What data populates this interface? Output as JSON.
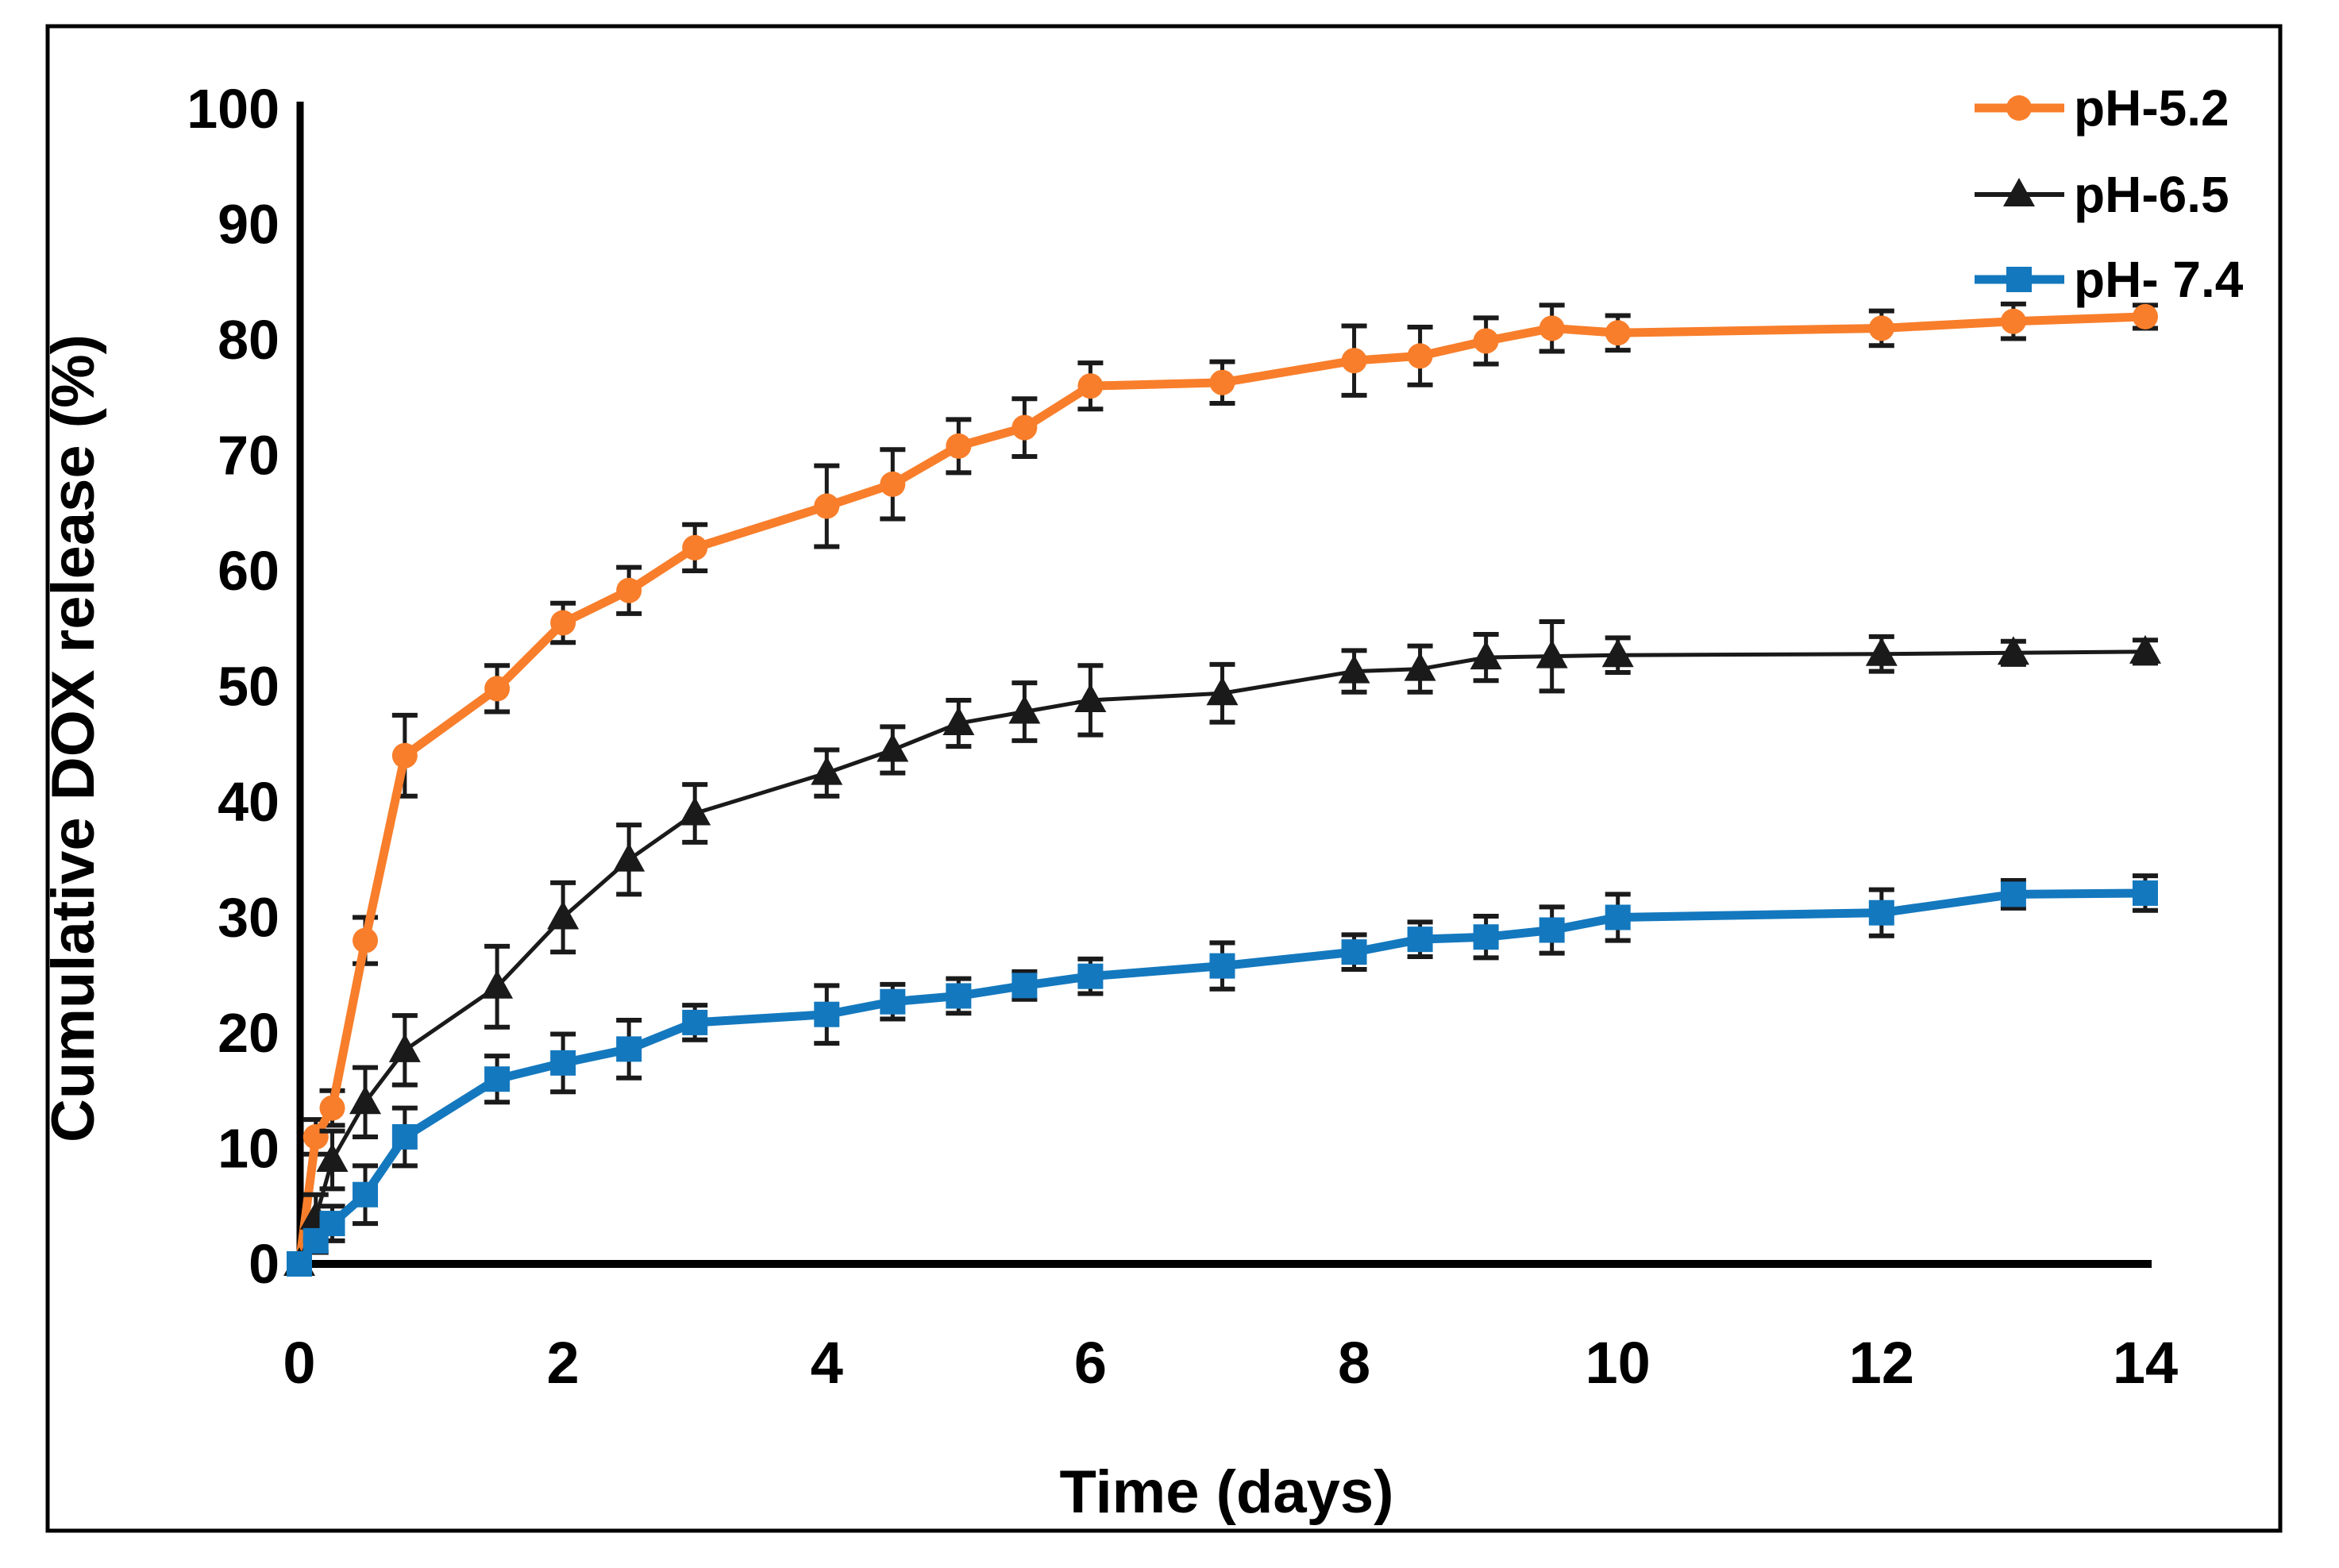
{
  "figure": {
    "background_color": "#ffffff",
    "frame_color": "#000000",
    "axis_color": "#000000",
    "error_bar_color": "#1a1a1a"
  },
  "chart_data": {
    "type": "line",
    "title": "",
    "xlabel": "Time (days)",
    "ylabel": "Cumulative DOX release (%)",
    "xlim": [
      0,
      14
    ],
    "ylim": [
      0,
      100
    ],
    "x_ticks": [
      0,
      2,
      4,
      6,
      8,
      10,
      12,
      14
    ],
    "y_ticks": [
      0,
      10,
      20,
      30,
      40,
      50,
      60,
      70,
      80,
      90,
      100
    ],
    "grid": false,
    "legend_position": "top-right",
    "error_bars": true,
    "x": [
      0,
      0.125,
      0.25,
      0.5,
      0.8,
      1.5,
      2,
      2.5,
      3,
      4,
      4.5,
      5,
      5.5,
      6,
      7,
      8,
      8.5,
      9,
      9.5,
      10,
      12,
      13,
      14
    ],
    "series": [
      {
        "name": "pH-5.2",
        "color": "#F87E2B",
        "marker": "circle",
        "line_width": 11,
        "values": [
          0,
          11,
          13.5,
          28,
          44,
          49.8,
          55.5,
          58.3,
          62,
          65.6,
          67.5,
          70.8,
          72.4,
          76,
          76.3,
          78.2,
          78.6,
          79.9,
          81,
          80.6,
          81,
          81.6,
          82
        ],
        "errors": [
          0.5,
          1.5,
          1.5,
          2,
          3.5,
          2,
          1.7,
          2,
          2,
          3.5,
          3,
          2.3,
          2.5,
          2,
          1.8,
          3,
          2.5,
          2,
          2,
          1.5,
          1.5,
          1.5,
          1
        ]
      },
      {
        "name": "pH-6.5",
        "color": "#1a1a1a",
        "marker": "triangle",
        "line_width": 5,
        "values": [
          0,
          4,
          9,
          14,
          18.5,
          24,
          30,
          35,
          39,
          42.5,
          44.5,
          46.8,
          47.8,
          48.8,
          49.4,
          51.3,
          51.5,
          52.5,
          52.6,
          52.7,
          52.8,
          52.9,
          53
        ],
        "errors": [
          0.5,
          2,
          2.5,
          3,
          3,
          3.5,
          3,
          3,
          2.5,
          2,
          2,
          2,
          2.5,
          3,
          2.5,
          1.8,
          2,
          2,
          3,
          1.5,
          1.5,
          1,
          1
        ]
      },
      {
        "name": "pH- 7.4",
        "color": "#1478BE",
        "marker": "square",
        "line_width": 11,
        "values": [
          0,
          2,
          3.5,
          6,
          11,
          16,
          17.4,
          18.6,
          20.9,
          21.6,
          22.7,
          23.2,
          24.1,
          24.9,
          25.8,
          27,
          28.1,
          28.3,
          28.9,
          30,
          30.4,
          32,
          32.1
        ],
        "errors": [
          0.3,
          1,
          1.5,
          2.5,
          2.5,
          2,
          2.5,
          2.5,
          1.5,
          2.5,
          1.5,
          1.5,
          1.2,
          1.5,
          2,
          1.5,
          1.5,
          1.8,
          2,
          2,
          2,
          1.2,
          1.5
        ]
      }
    ]
  }
}
